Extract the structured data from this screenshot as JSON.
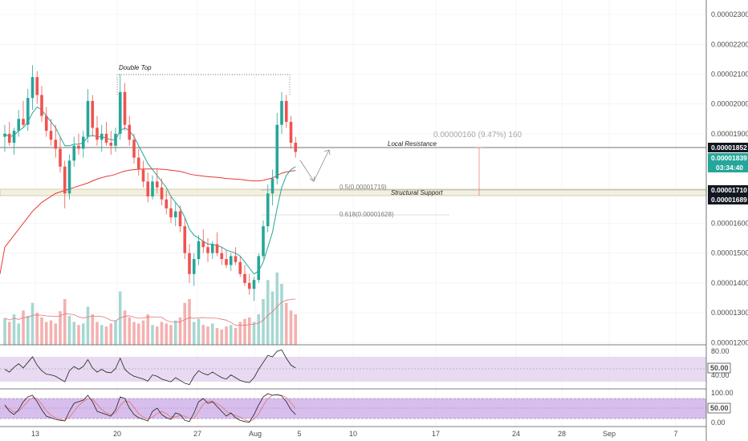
{
  "chart_data": {
    "type": "candlestick",
    "y_axis": {
      "ticks": [
        "0.00002300",
        "0.00002200",
        "0.00002100",
        "0.00002000",
        "0.00001900",
        "0.00001600",
        "0.00001500",
        "0.00001400",
        "0.00001300",
        "0.00001200"
      ],
      "range": [
        1.18e-05,
        2.34e-05
      ]
    },
    "x_axis": {
      "ticks": [
        "13",
        "20",
        "27",
        "Aug",
        "5",
        "10",
        "17",
        "24",
        "28",
        "Sep",
        "7"
      ]
    },
    "price_labels": {
      "local_resistance": {
        "value": "0.00001852",
        "color": "#131722"
      },
      "last_price": {
        "value": "0.00001839",
        "color": "#26a69a"
      },
      "countdown": {
        "value": "03:34:40",
        "color": "#26a69a"
      },
      "support_top": {
        "value": "0.00001710",
        "color": "#131722"
      },
      "support_bottom": {
        "value": "0.00001689",
        "color": "#131722"
      }
    },
    "annotations": {
      "double_top": "Double Top",
      "local_resistance": "Local Resistance",
      "structural_support": "Structural Support",
      "fib_05": "0.5(0.00001719)",
      "fib_0618": "0.618(0.00001628)",
      "measure": "0.00000160 (9.47%) 160"
    },
    "rsi": {
      "ticks": [
        "80.00",
        "40.00"
      ],
      "mid_label": "50.00",
      "range": [
        25,
        85
      ]
    },
    "stoch": {
      "ticks": [
        "100.00",
        "0.00"
      ],
      "mid_label": "50.00",
      "range": [
        -5,
        105
      ]
    },
    "candles": [
      {
        "o": 18.9,
        "h": 19.3,
        "l": 18.4,
        "c": 19.0
      },
      {
        "o": 19.0,
        "h": 19.4,
        "l": 18.6,
        "c": 18.7
      },
      {
        "o": 18.7,
        "h": 19.2,
        "l": 18.3,
        "c": 19.1
      },
      {
        "o": 19.1,
        "h": 19.8,
        "l": 18.9,
        "c": 19.5
      },
      {
        "o": 19.5,
        "h": 20.1,
        "l": 19.2,
        "c": 19.3
      },
      {
        "o": 19.3,
        "h": 20.5,
        "l": 19.1,
        "c": 20.2
      },
      {
        "o": 20.2,
        "h": 21.3,
        "l": 19.8,
        "c": 20.9
      },
      {
        "o": 20.9,
        "h": 21.1,
        "l": 20.0,
        "c": 20.3
      },
      {
        "o": 20.3,
        "h": 20.6,
        "l": 19.4,
        "c": 19.6
      },
      {
        "o": 19.6,
        "h": 19.9,
        "l": 18.9,
        "c": 19.1
      },
      {
        "o": 19.1,
        "h": 19.5,
        "l": 18.6,
        "c": 18.8
      },
      {
        "o": 18.8,
        "h": 19.3,
        "l": 18.2,
        "c": 18.5
      },
      {
        "o": 18.5,
        "h": 18.9,
        "l": 17.7,
        "c": 17.9
      },
      {
        "o": 17.9,
        "h": 18.1,
        "l": 16.5,
        "c": 17.0
      },
      {
        "o": 17.0,
        "h": 18.3,
        "l": 16.8,
        "c": 18.1
      },
      {
        "o": 18.1,
        "h": 18.9,
        "l": 17.9,
        "c": 18.6
      },
      {
        "o": 18.6,
        "h": 19.0,
        "l": 18.3,
        "c": 18.5
      },
      {
        "o": 18.5,
        "h": 19.1,
        "l": 18.2,
        "c": 18.9
      },
      {
        "o": 18.9,
        "h": 20.5,
        "l": 18.7,
        "c": 20.1
      },
      {
        "o": 20.1,
        "h": 20.3,
        "l": 18.9,
        "c": 19.2
      },
      {
        "o": 19.2,
        "h": 19.6,
        "l": 18.6,
        "c": 18.8
      },
      {
        "o": 18.8,
        "h": 19.3,
        "l": 18.4,
        "c": 19.0
      },
      {
        "o": 19.0,
        "h": 19.4,
        "l": 18.6,
        "c": 18.7
      },
      {
        "o": 18.7,
        "h": 19.1,
        "l": 18.3,
        "c": 18.6
      },
      {
        "o": 18.6,
        "h": 19.2,
        "l": 18.4,
        "c": 19.0
      },
      {
        "o": 19.0,
        "h": 21.0,
        "l": 18.8,
        "c": 20.4
      },
      {
        "o": 20.4,
        "h": 20.7,
        "l": 19.1,
        "c": 19.3
      },
      {
        "o": 19.3,
        "h": 19.6,
        "l": 18.6,
        "c": 18.8
      },
      {
        "o": 18.8,
        "h": 19.0,
        "l": 18.0,
        "c": 18.2
      },
      {
        "o": 18.2,
        "h": 18.5,
        "l": 17.6,
        "c": 17.8
      },
      {
        "o": 17.8,
        "h": 18.1,
        "l": 17.2,
        "c": 17.4
      },
      {
        "o": 17.4,
        "h": 17.7,
        "l": 16.7,
        "c": 16.9
      },
      {
        "o": 16.9,
        "h": 17.6,
        "l": 16.8,
        "c": 17.4
      },
      {
        "o": 17.4,
        "h": 17.8,
        "l": 17.0,
        "c": 17.2
      },
      {
        "o": 17.2,
        "h": 17.5,
        "l": 16.6,
        "c": 16.8
      },
      {
        "o": 16.8,
        "h": 17.1,
        "l": 16.3,
        "c": 16.5
      },
      {
        "o": 16.5,
        "h": 16.9,
        "l": 16.0,
        "c": 16.2
      },
      {
        "o": 16.2,
        "h": 16.7,
        "l": 15.9,
        "c": 16.4
      },
      {
        "o": 16.4,
        "h": 16.6,
        "l": 15.7,
        "c": 15.9
      },
      {
        "o": 15.9,
        "h": 16.2,
        "l": 14.8,
        "c": 15.0
      },
      {
        "o": 15.0,
        "h": 15.3,
        "l": 14.0,
        "c": 14.3
      },
      {
        "o": 14.3,
        "h": 15.0,
        "l": 13.9,
        "c": 14.8
      },
      {
        "o": 14.8,
        "h": 15.6,
        "l": 14.6,
        "c": 15.4
      },
      {
        "o": 15.4,
        "h": 15.8,
        "l": 15.0,
        "c": 15.2
      },
      {
        "o": 15.2,
        "h": 15.5,
        "l": 14.7,
        "c": 15.0
      },
      {
        "o": 15.0,
        "h": 15.4,
        "l": 14.8,
        "c": 15.3
      },
      {
        "o": 15.3,
        "h": 15.7,
        "l": 14.9,
        "c": 15.0
      },
      {
        "o": 15.0,
        "h": 15.2,
        "l": 14.6,
        "c": 14.8
      },
      {
        "o": 14.8,
        "h": 15.1,
        "l": 14.5,
        "c": 14.6
      },
      {
        "o": 14.6,
        "h": 15.0,
        "l": 14.4,
        "c": 14.9
      },
      {
        "o": 14.9,
        "h": 15.2,
        "l": 14.6,
        "c": 14.7
      },
      {
        "o": 14.7,
        "h": 14.9,
        "l": 14.2,
        "c": 14.3
      },
      {
        "o": 14.3,
        "h": 14.6,
        "l": 13.9,
        "c": 14.0
      },
      {
        "o": 14.0,
        "h": 14.3,
        "l": 13.6,
        "c": 13.8
      },
      {
        "o": 13.8,
        "h": 14.2,
        "l": 13.4,
        "c": 14.1
      },
      {
        "o": 14.1,
        "h": 15.0,
        "l": 14.0,
        "c": 14.9
      },
      {
        "o": 14.9,
        "h": 16.1,
        "l": 14.8,
        "c": 15.9
      },
      {
        "o": 15.9,
        "h": 17.3,
        "l": 15.7,
        "c": 17.0
      },
      {
        "o": 17.0,
        "h": 17.8,
        "l": 16.6,
        "c": 17.5
      },
      {
        "o": 17.5,
        "h": 19.7,
        "l": 17.3,
        "c": 19.3
      },
      {
        "o": 19.3,
        "h": 20.4,
        "l": 19.0,
        "c": 20.1
      },
      {
        "o": 20.1,
        "h": 20.3,
        "l": 19.2,
        "c": 19.4
      },
      {
        "o": 19.4,
        "h": 19.6,
        "l": 18.5,
        "c": 18.7
      },
      {
        "o": 18.7,
        "h": 18.9,
        "l": 18.2,
        "c": 18.39
      }
    ],
    "volumes": [
      35,
      30,
      40,
      28,
      45,
      38,
      55,
      42,
      36,
      30,
      32,
      28,
      44,
      60,
      38,
      30,
      26,
      28,
      50,
      40,
      30,
      26,
      24,
      28,
      32,
      70,
      45,
      36,
      30,
      28,
      32,
      40,
      26,
      24,
      30,
      28,
      26,
      32,
      36,
      55,
      60,
      30,
      34,
      26,
      24,
      28,
      22,
      20,
      24,
      26,
      22,
      30,
      34,
      36,
      30,
      40,
      60,
      85,
      70,
      95,
      80,
      55,
      45,
      40
    ],
    "ema_long": [
      15.2,
      15.4,
      15.6,
      15.8,
      16.0,
      16.2,
      16.4,
      16.55,
      16.7,
      16.8,
      16.9,
      17.0,
      17.05,
      17.1,
      17.15,
      17.2,
      17.25,
      17.3,
      17.35,
      17.42,
      17.48,
      17.53,
      17.57,
      17.6,
      17.64,
      17.7,
      17.75,
      17.78,
      17.8,
      17.81,
      17.82,
      17.82,
      17.82,
      17.82,
      17.81,
      17.8,
      17.78,
      17.76,
      17.74,
      17.7,
      17.65,
      17.62,
      17.6,
      17.58,
      17.56,
      17.55,
      17.54,
      17.52,
      17.5,
      17.49,
      17.48,
      17.47,
      17.45,
      17.43,
      17.42,
      17.42,
      17.44,
      17.48,
      17.52,
      17.6,
      17.68,
      17.72,
      17.75,
      17.77
    ],
    "ema_short": [
      19.0,
      18.9,
      18.95,
      19.1,
      19.2,
      19.4,
      19.7,
      19.9,
      19.8,
      19.6,
      19.4,
      19.2,
      18.9,
      18.6,
      18.6,
      18.65,
      18.65,
      18.7,
      18.9,
      18.95,
      18.9,
      18.9,
      18.85,
      18.8,
      18.8,
      19.1,
      19.2,
      19.1,
      18.9,
      18.6,
      18.3,
      18.0,
      17.8,
      17.6,
      17.4,
      17.2,
      16.9,
      16.7,
      16.5,
      16.2,
      15.8,
      15.6,
      15.5,
      15.4,
      15.3,
      15.3,
      15.25,
      15.2,
      15.1,
      15.05,
      15.0,
      14.9,
      14.7,
      14.5,
      14.3,
      14.4,
      14.7,
      15.2,
      15.7,
      16.5,
      17.2,
      17.6,
      17.8,
      17.9
    ],
    "rsi_values": [
      52,
      48,
      55,
      60,
      54,
      62,
      70,
      58,
      50,
      45,
      44,
      42,
      38,
      34,
      50,
      56,
      52,
      56,
      66,
      54,
      48,
      52,
      48,
      47,
      53,
      68,
      52,
      46,
      42,
      40,
      38,
      35,
      44,
      42,
      38,
      36,
      34,
      40,
      36,
      32,
      30,
      42,
      50,
      46,
      44,
      48,
      44,
      40,
      38,
      44,
      40,
      36,
      34,
      33,
      40,
      52,
      62,
      72,
      70,
      78,
      80,
      68,
      58,
      54
    ],
    "stoch_k": [
      60,
      40,
      30,
      45,
      70,
      85,
      90,
      70,
      45,
      25,
      20,
      15,
      12,
      10,
      40,
      65,
      70,
      75,
      90,
      70,
      40,
      35,
      30,
      25,
      45,
      85,
      80,
      50,
      30,
      20,
      15,
      10,
      40,
      50,
      30,
      20,
      15,
      35,
      30,
      12,
      8,
      35,
      70,
      80,
      65,
      70,
      55,
      40,
      25,
      35,
      20,
      12,
      8,
      6,
      30,
      60,
      85,
      95,
      90,
      92,
      88,
      70,
      45,
      30
    ],
    "stoch_d": [
      55,
      48,
      38,
      40,
      55,
      72,
      83,
      80,
      62,
      42,
      28,
      20,
      15,
      12,
      22,
      40,
      58,
      70,
      80,
      78,
      62,
      45,
      35,
      30,
      35,
      58,
      72,
      70,
      52,
      33,
      22,
      15,
      22,
      33,
      40,
      33,
      22,
      23,
      27,
      25,
      17,
      18,
      40,
      62,
      72,
      72,
      63,
      55,
      40,
      33,
      27,
      22,
      13,
      9,
      15,
      32,
      58,
      80,
      90,
      92,
      90,
      83,
      67,
      48
    ]
  }
}
